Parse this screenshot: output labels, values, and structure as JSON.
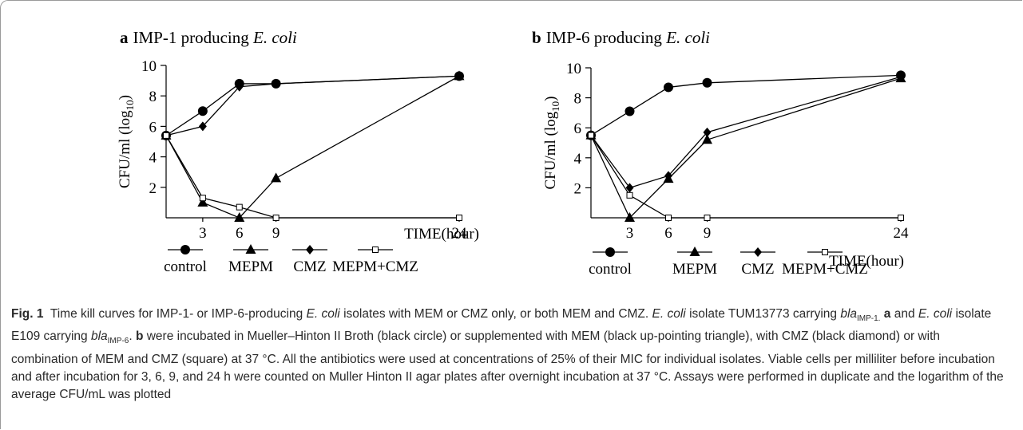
{
  "chart_data": [
    {
      "panel": "a",
      "title": "IMP-1 producing",
      "title_species": "E. coli",
      "type": "line",
      "xlabel": "TIME(hour)",
      "ylabel": "CFU/ml (log10)",
      "x_ticks": [
        3,
        6,
        9,
        24
      ],
      "y_ticks": [
        2,
        4,
        6,
        8,
        10
      ],
      "xlim": [
        0,
        24
      ],
      "ylim": [
        0,
        10
      ],
      "series": [
        {
          "name": "control",
          "marker": "circle",
          "x": [
            0,
            3,
            6,
            9,
            24
          ],
          "y": [
            5.4,
            7.0,
            8.8,
            8.8,
            9.3
          ]
        },
        {
          "name": "MEPM",
          "marker": "triangle",
          "x": [
            0,
            3,
            6,
            9,
            24
          ],
          "y": [
            5.4,
            1.0,
            0.0,
            2.6,
            9.3
          ]
        },
        {
          "name": "CMZ",
          "marker": "diamond",
          "x": [
            0,
            3,
            6,
            9,
            24
          ],
          "y": [
            5.4,
            6.0,
            8.6,
            8.8,
            9.3
          ]
        },
        {
          "name": "MEPM+CMZ",
          "marker": "square",
          "x": [
            0,
            3,
            6,
            9,
            24
          ],
          "y": [
            5.4,
            1.3,
            0.7,
            0.0,
            0.0
          ]
        }
      ]
    },
    {
      "panel": "b",
      "title": "IMP-6 producing",
      "title_species": "E. coli",
      "type": "line",
      "xlabel": "TIME(hour)",
      "ylabel": "CFU/ml (log10)",
      "x_ticks": [
        3,
        6,
        9,
        24
      ],
      "y_ticks": [
        2,
        4,
        6,
        8,
        10
      ],
      "xlim": [
        0,
        24
      ],
      "ylim": [
        0,
        10
      ],
      "series": [
        {
          "name": "control",
          "marker": "circle",
          "x": [
            0,
            3,
            6,
            9,
            24
          ],
          "y": [
            5.5,
            7.1,
            8.7,
            9.0,
            9.5
          ]
        },
        {
          "name": "MEPM",
          "marker": "triangle",
          "x": [
            0,
            3,
            6,
            9,
            24
          ],
          "y": [
            5.5,
            0.0,
            2.6,
            5.2,
            9.3
          ]
        },
        {
          "name": "CMZ",
          "marker": "diamond",
          "x": [
            0,
            3,
            6,
            9,
            24
          ],
          "y": [
            5.5,
            2.0,
            2.8,
            5.7,
            9.4
          ]
        },
        {
          "name": "MEPM+CMZ",
          "marker": "square",
          "x": [
            0,
            3,
            6,
            9,
            24
          ],
          "y": [
            5.5,
            1.5,
            0.0,
            0.0,
            0.0
          ]
        }
      ]
    }
  ],
  "legend": {
    "control": "control",
    "mepm": "MEPM",
    "cmz": "CMZ",
    "combo": "MEPM+CMZ"
  },
  "caption": {
    "lead": "Fig. 1",
    "s1": "Time kill curves for IMP-1- or IMP-6-producing",
    "sp1": "E. coli",
    "s2": "isolates with MEM or CMZ only, or both MEM and CMZ.",
    "sp2": "E. coli",
    "s3": "isolate TUM13773 carrying",
    "gene1": "bla",
    "gene1_sub": "IMP-1.",
    "panel_a": "a",
    "s4": "and",
    "sp3": "E. coli",
    "s5": "isolate E109 carrying",
    "gene2": "bla",
    "gene2_sub": "IMP-6",
    "s5b": ".",
    "panel_b": "b",
    "s6": "were incubated in Mueller–Hinton II Broth (black circle) or supplemented with MEM (black up-pointing triangle), with CMZ (black diamond) or with combination of MEM and CMZ (square) at 37 °C. All the antibiotics were used at concentrations of 25% of their MIC for individual isolates. Viable cells per milliliter before incubation and after incubation for 3, 6, 9, and 24 h were counted on Muller Hinton II agar plates after overnight incubation at 37 °C. Assays were performed in duplicate and the logarithm of the average CFU/mL was plotted"
  }
}
